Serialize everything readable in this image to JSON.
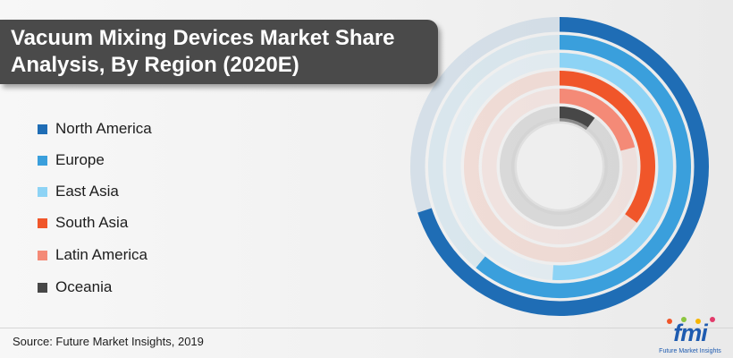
{
  "title": {
    "line1": "Vacuum Mixing Devices Market Share",
    "line2": "Analysis, By Region (2020E)"
  },
  "source": "Source: Future Market Insights, 2019",
  "logo": {
    "text": "fmi",
    "subtitle": "Future Market Insights"
  },
  "colors": {
    "North America": "#1f6db5",
    "Europe": "#3a9fdc",
    "East Asia": "#8dd3f5",
    "South Asia": "#f0562a",
    "Latin America": "#f48a77",
    "Oceania": "#474747"
  },
  "chart_data": {
    "type": "radial_bar",
    "title": "Vacuum Mixing Devices Market Share Analysis, By Region (2020E)",
    "unit": "share of full circle (%)",
    "legend_position": "left",
    "categories": [
      "North America",
      "Europe",
      "East Asia",
      "South Asia",
      "Latin America",
      "Oceania"
    ],
    "values": [
      70,
      61,
      51,
      35,
      21,
      10
    ]
  }
}
